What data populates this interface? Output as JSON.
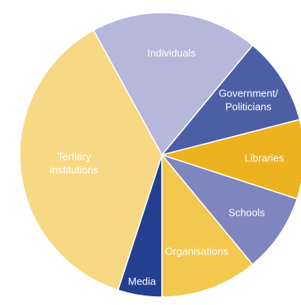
{
  "chart_data": {
    "type": "pie",
    "title": "",
    "start_angle_deg": 108,
    "direction": "counterclockwise",
    "slice_border_color": "#ffffff",
    "slices": [
      {
        "label": [
          "Media"
        ],
        "value": 5,
        "color": "#233f8f",
        "label_color": "#ffffff"
      },
      {
        "label": [
          "Organisations"
        ],
        "value": 11,
        "color": "#f2c84f",
        "label_color": "#ffffff"
      },
      {
        "label": [
          "Schools"
        ],
        "value": 9,
        "color": "#7f85bf",
        "label_color": "#ffffff"
      },
      {
        "label": [
          "Libraries"
        ],
        "value": 9,
        "color": "#edb220",
        "label_color": "#ffffff"
      },
      {
        "label": [
          "Government/",
          "Politicians"
        ],
        "value": 10,
        "color": "#4d5fa4",
        "label_color": "#ffffff"
      },
      {
        "label": [
          "Individuals"
        ],
        "value": 19,
        "color": "#b5b7db",
        "label_color": "#ffffff"
      },
      {
        "label": [
          "Tertiary",
          "institutions"
        ],
        "value": 37,
        "color": "#f7d985",
        "label_color": "#ffffff"
      }
    ]
  }
}
